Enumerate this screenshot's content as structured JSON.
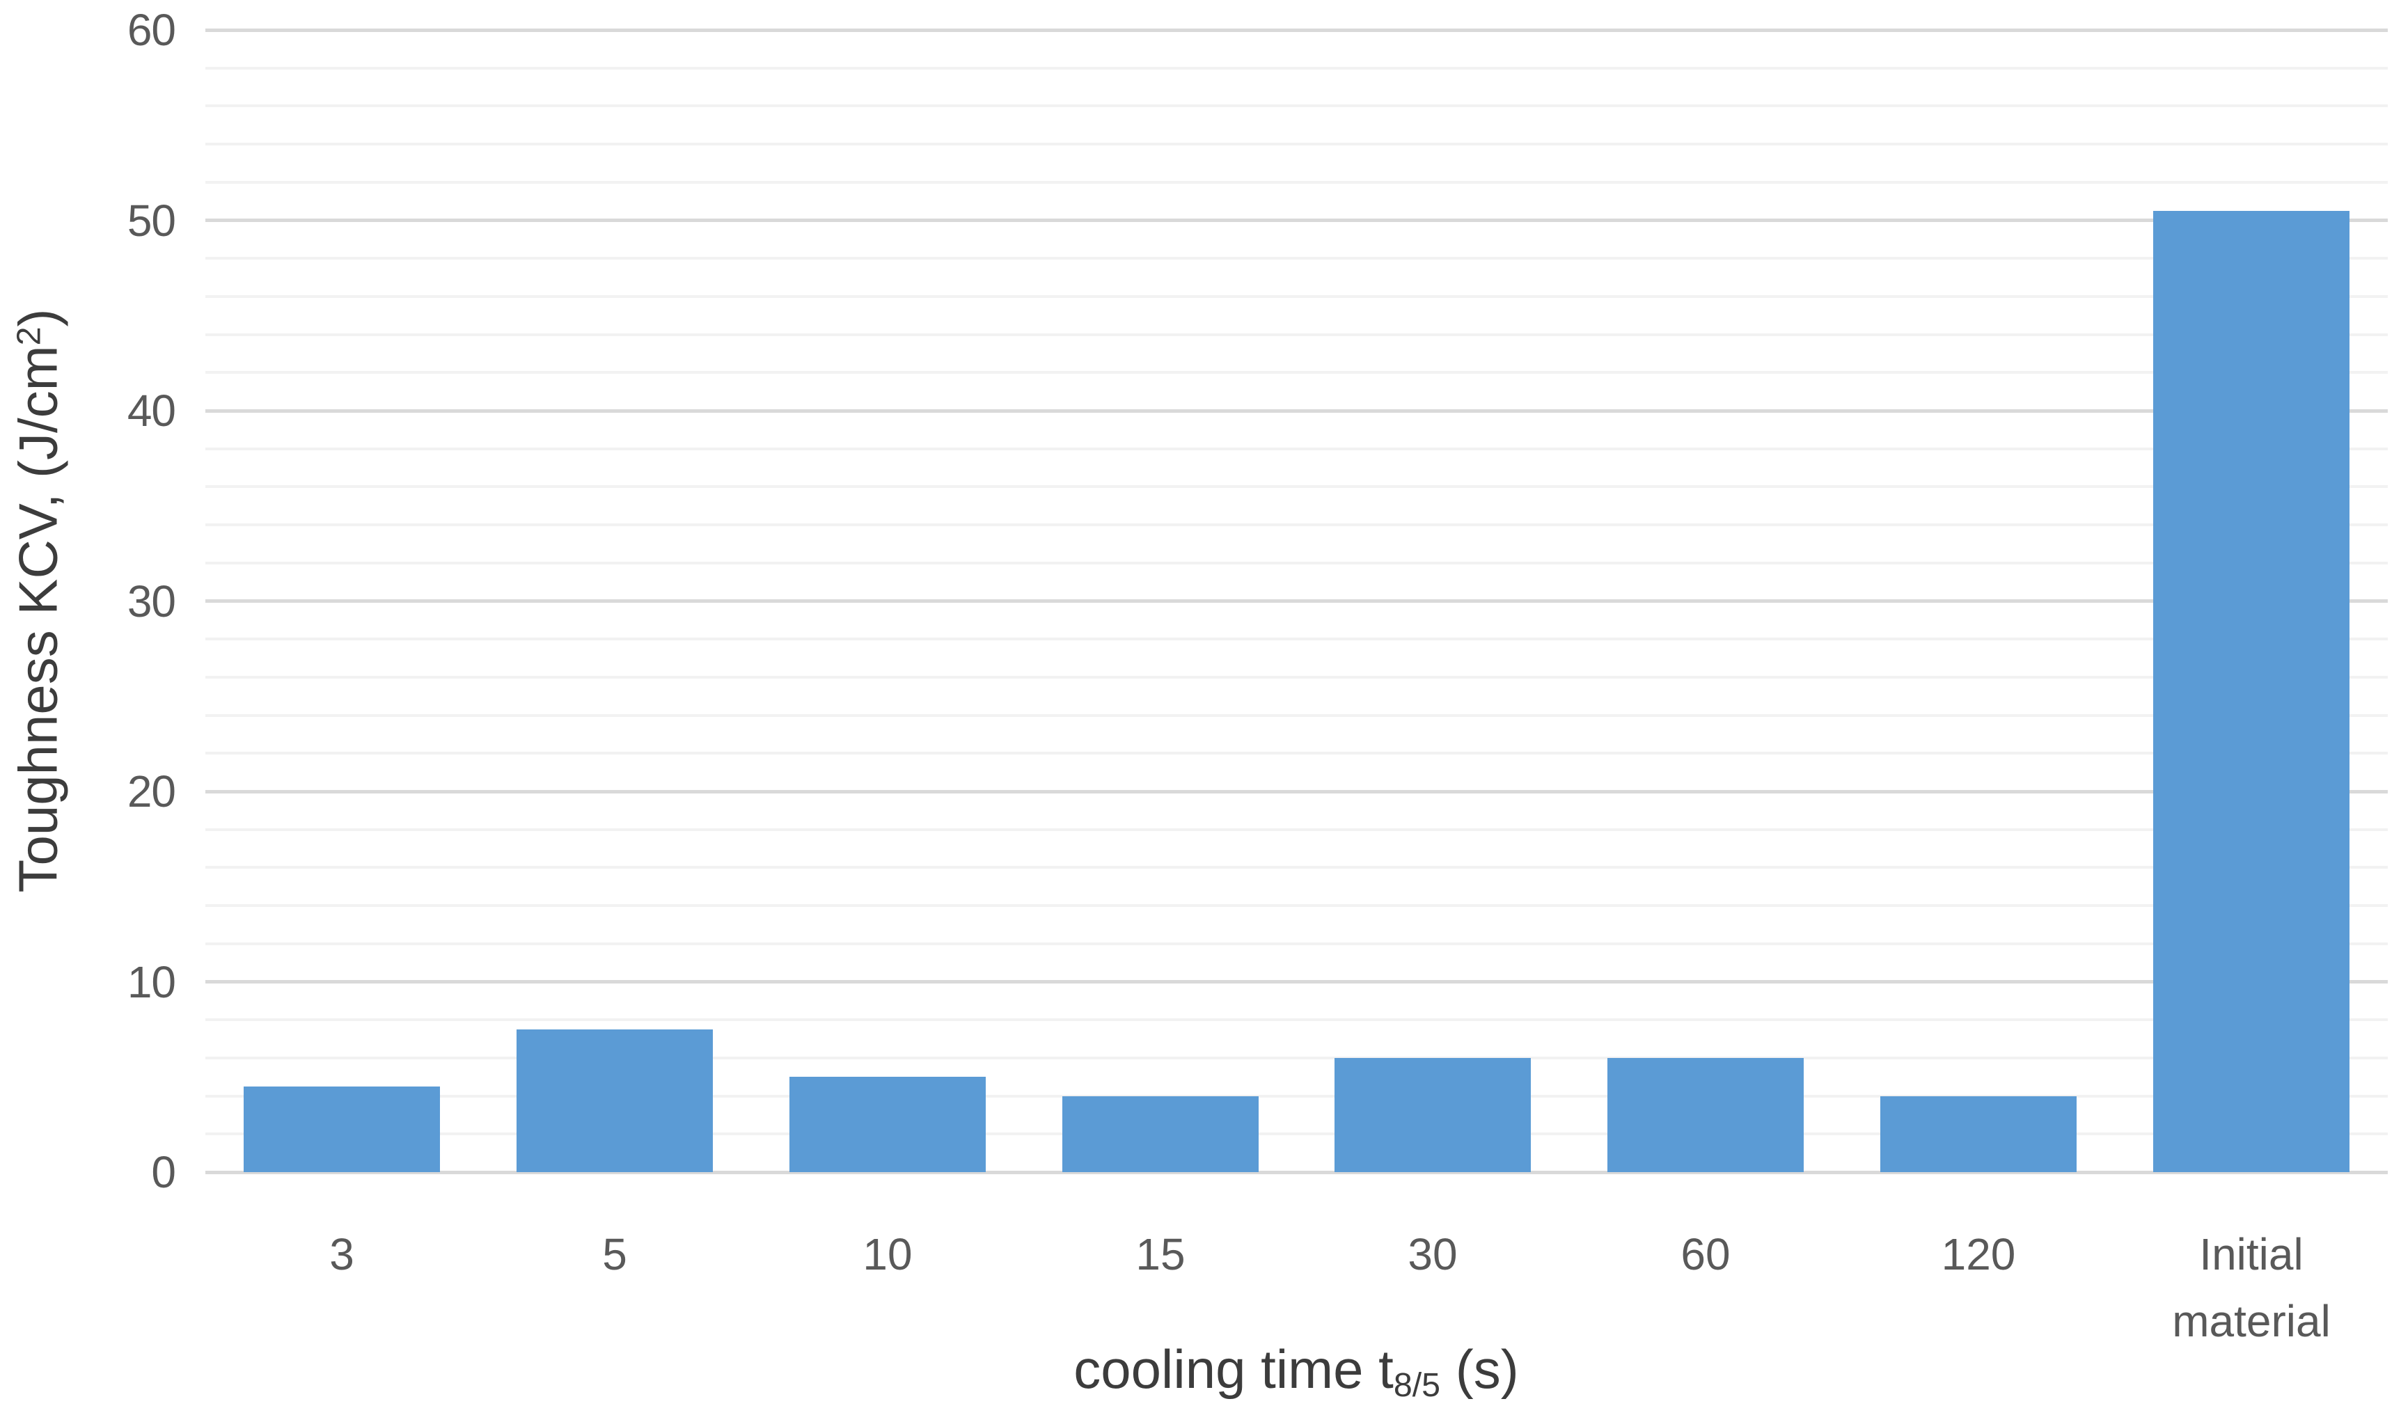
{
  "chart_data": {
    "type": "bar",
    "title": "",
    "categories": [
      "3",
      "5",
      "10",
      "15",
      "30",
      "60",
      "120",
      "Initial material"
    ],
    "values": [
      4.5,
      7.5,
      5,
      4,
      6,
      6,
      4,
      50.5
    ],
    "xlabel": {
      "prefix": "cooling time t",
      "subscript": "8/5",
      "suffix": " (s)"
    },
    "ylabel": {
      "prefix": "Toughness KCV, (J/cm",
      "superscript": "2",
      "suffix": ")"
    },
    "y_axis": {
      "min": 0,
      "max": 60,
      "major_step": 10,
      "minor_step": 2,
      "tick_labels": [
        "0",
        "10",
        "20",
        "30",
        "40",
        "50",
        "60"
      ]
    },
    "grid": {
      "major": true,
      "minor": true
    },
    "legend": "none",
    "colors": {
      "bar": "#5B9BD5",
      "major_grid": "#D9D9D9",
      "minor_grid": "#F2F2F2",
      "axis_line": "#D9D9D9",
      "tick_text": "#595959",
      "title_text": "#3C3C3C",
      "background": "#FFFFFF"
    }
  }
}
